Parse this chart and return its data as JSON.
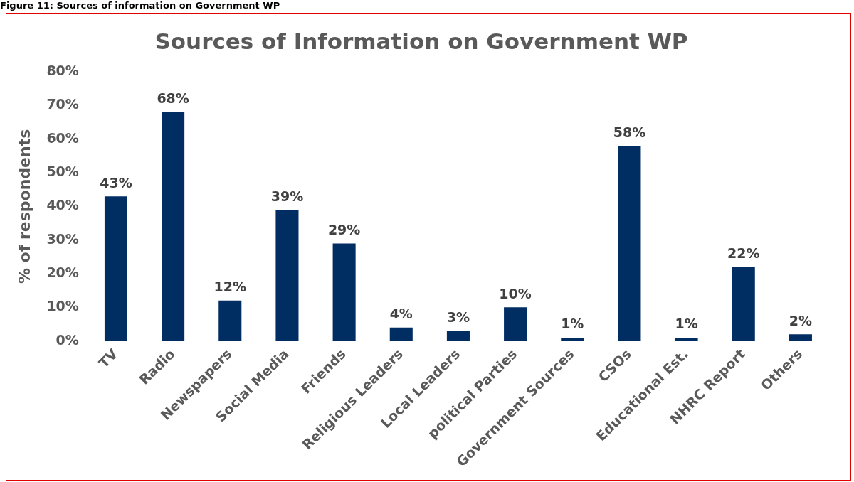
{
  "chart_data": {
    "type": "bar",
    "title": "Sources of Information on Government WP",
    "ylabel": "% of respondents",
    "annotations": [
      "Figure 11: Sources of information on Government WP"
    ],
    "categories": [
      "TV",
      "Radio",
      "Newspapers",
      "Social Media",
      "Friends",
      "Religious Leaders",
      "Local Leaders",
      "political Parties",
      "Government Sources",
      "CSOs",
      "Educational Est.",
      "NHRC Report",
      "Others"
    ],
    "values": [
      43,
      68,
      12,
      39,
      29,
      4,
      3,
      10,
      1,
      58,
      1,
      22,
      2
    ],
    "value_labels": [
      "43%",
      "68%",
      "12%",
      "39%",
      "29%",
      "4%",
      "3%",
      "10%",
      "1%",
      "58%",
      "1%",
      "22%",
      "2%"
    ],
    "color": "#002d62",
    "ylim": [
      0,
      80
    ],
    "yticks": [
      {
        "value": 0,
        "label": "0%"
      },
      {
        "value": 10,
        "label": "10%"
      },
      {
        "value": 20,
        "label": "20%"
      },
      {
        "value": 30,
        "label": "30%"
      },
      {
        "value": 40,
        "label": "40%"
      },
      {
        "value": 50,
        "label": "50%"
      },
      {
        "value": 60,
        "label": "60%"
      },
      {
        "value": 70,
        "label": "70%"
      },
      {
        "value": 80,
        "label": "80%"
      }
    ],
    "grid": false,
    "legend": false
  }
}
